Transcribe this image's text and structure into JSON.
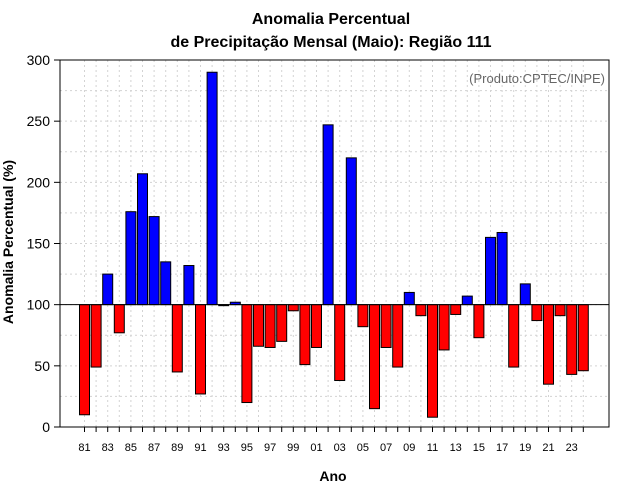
{
  "chart_data": {
    "type": "bar",
    "title": [
      "Anomalia Percentual",
      "de Precipitação Mensal (Maio): Região 111"
    ],
    "xlabel": "Ano",
    "ylabel": "Anomalia Percentual (%)",
    "watermark": "(Produto:CPTEC/INPE)",
    "ylim": [
      0,
      300
    ],
    "yticks": [
      0,
      50,
      100,
      150,
      200,
      250,
      300
    ],
    "baseline": 100,
    "grid": true,
    "colors": {
      "above": "#0000ff",
      "below": "#ff0000",
      "edge": "#000000",
      "grid": "#d3d3d3"
    },
    "xtick_labels": [
      "81",
      "83",
      "85",
      "87",
      "89",
      "91",
      "93",
      "95",
      "97",
      "99",
      "01",
      "03",
      "05",
      "07",
      "09",
      "11",
      "13",
      "15",
      "17",
      "19",
      "21",
      "23"
    ],
    "categories": [
      "1981",
      "1982",
      "1983",
      "1984",
      "1985",
      "1986",
      "1987",
      "1988",
      "1989",
      "1990",
      "1991",
      "1992",
      "1993",
      "1994",
      "1995",
      "1996",
      "1997",
      "1998",
      "1999",
      "2000",
      "2001",
      "2002",
      "2003",
      "2004",
      "2005",
      "2006",
      "2007",
      "2008",
      "2009",
      "2010",
      "2011",
      "2012",
      "2013",
      "2014",
      "2015",
      "2016",
      "2017",
      "2018",
      "2019",
      "2020",
      "2021",
      "2022",
      "2023",
      "2024"
    ],
    "values": [
      10,
      49,
      125,
      77,
      176,
      207,
      172,
      135,
      45,
      132,
      27,
      290,
      100,
      102,
      20,
      66,
      65,
      70,
      95,
      51,
      65,
      247,
      38,
      220,
      82,
      15,
      65,
      49,
      110,
      91,
      8,
      63,
      92,
      107,
      73,
      155,
      159,
      49,
      117,
      87,
      35,
      91,
      43,
      46
    ]
  }
}
